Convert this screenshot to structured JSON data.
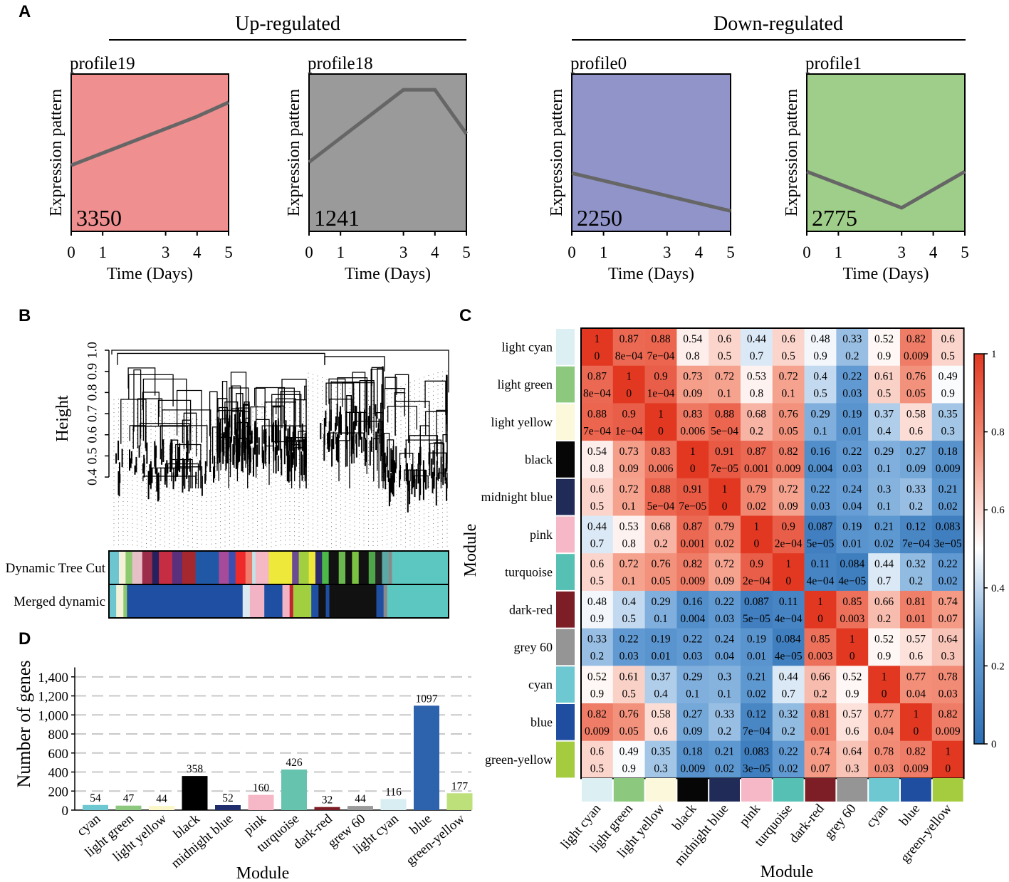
{
  "panel_labels": [
    "A",
    "B",
    "C",
    "D"
  ],
  "chart_data": [
    {
      "type": "line",
      "panel": "A",
      "group_titles": [
        "Up-regulated",
        "Down-regulated"
      ],
      "xlabel": "Time (Days)",
      "ylabel": "Expression pattern",
      "xticks": [
        0,
        1,
        3,
        4,
        5
      ],
      "xlim": [
        0,
        5
      ],
      "profiles": [
        {
          "name": "profile19",
          "count": "3350",
          "color": "#ef8f8f",
          "x": [
            0,
            4,
            5
          ],
          "y": [
            0.42,
            0.73,
            0.82
          ]
        },
        {
          "name": "profile18",
          "count": "1241",
          "color": "#9a9a9a",
          "x": [
            0,
            3,
            4,
            5
          ],
          "y": [
            0.44,
            0.9,
            0.9,
            0.62
          ]
        },
        {
          "name": "profile0",
          "count": "2250",
          "color": "#9094c8",
          "x": [
            0,
            5
          ],
          "y": [
            0.37,
            0.13
          ]
        },
        {
          "name": "profile1",
          "count": "2775",
          "color": "#9fce8a",
          "x": [
            0,
            3,
            5
          ],
          "y": [
            0.38,
            0.15,
            0.38
          ]
        }
      ]
    },
    {
      "type": "dendrogram",
      "panel": "B",
      "ylabel": "Height",
      "yticks": [
        "1.0",
        "0.9",
        "0.8",
        "0.7",
        "0.6",
        "0.5",
        "0.4"
      ],
      "ylim": [
        0.36,
        1.0
      ],
      "color_rows": [
        {
          "label": "Dynamic Tree Cut",
          "segments": [
            {
              "c": "#6cc5cf",
              "w": 3
            },
            {
              "c": "#f5f0d8",
              "w": 2
            },
            {
              "c": "#8cc96f",
              "w": 2
            },
            {
              "c": "#e7c0c7",
              "w": 3
            },
            {
              "c": "#9b2c4a",
              "w": 3
            },
            {
              "c": "#27205e",
              "w": 2
            },
            {
              "c": "#c62d43",
              "w": 4
            },
            {
              "c": "#5a2f7c",
              "w": 3
            },
            {
              "c": "#a5282f",
              "w": 4
            },
            {
              "c": "#2058a6",
              "w": 7
            },
            {
              "c": "#a64a9a",
              "w": 3
            },
            {
              "c": "#3a4fb0",
              "w": 2
            },
            {
              "c": "#ee2a2a",
              "w": 3
            },
            {
              "c": "#f07c6e",
              "w": 2
            },
            {
              "c": "#bfe4e9",
              "w": 1
            },
            {
              "c": "#f4b9c5",
              "w": 4
            },
            {
              "c": "#ede83a",
              "w": 7
            },
            {
              "c": "#6d4a94",
              "w": 2
            },
            {
              "c": "#a2cf3f",
              "w": 3
            },
            {
              "c": "#ede83a",
              "w": 2
            },
            {
              "c": "#2e2a6b",
              "w": 2
            },
            {
              "c": "#4cb848",
              "w": 2
            },
            {
              "c": "#111111",
              "w": 3
            },
            {
              "c": "#6ab64f",
              "w": 2
            },
            {
              "c": "#111111",
              "w": 2
            },
            {
              "c": "#7cc242",
              "w": 2
            },
            {
              "c": "#111111",
              "w": 3
            },
            {
              "c": "#4ea54a",
              "w": 2
            },
            {
              "c": "#222222",
              "w": 2
            },
            {
              "c": "#5aa9a6",
              "w": 2
            },
            {
              "c": "#8a8a8a",
              "w": 1
            },
            {
              "c": "#5cc7c0",
              "w": 17
            }
          ]
        },
        {
          "label": "Merged dynamic",
          "segments": [
            {
              "c": "#6cc5cf",
              "w": 2
            },
            {
              "c": "#f5f0d8",
              "w": 2
            },
            {
              "c": "#8cc96f",
              "w": 1
            },
            {
              "c": "#1f4fa3",
              "w": 32
            },
            {
              "c": "#dbe9f1",
              "w": 2
            },
            {
              "c": "#f2b3c4",
              "w": 4
            },
            {
              "c": "#1f4fa3",
              "w": 5
            },
            {
              "c": "#f2b3c4",
              "w": 2
            },
            {
              "c": "#c42430",
              "w": 1
            },
            {
              "c": "#a2cf3f",
              "w": 5
            },
            {
              "c": "#1f4fa3",
              "w": 2
            },
            {
              "c": "#111111",
              "w": 2
            },
            {
              "c": "#1f4fa3",
              "w": 1
            },
            {
              "c": "#111111",
              "w": 13
            },
            {
              "c": "#1f4fa3",
              "w": 2
            },
            {
              "c": "#8a8a8a",
              "w": 1
            },
            {
              "c": "#5cc7c0",
              "w": 17
            }
          ]
        }
      ]
    },
    {
      "type": "heatmap",
      "panel": "C",
      "ylabel": "Module",
      "xlabel": "Module",
      "modules": [
        "light cyan",
        "light green",
        "light yellow",
        "black",
        "midnight blue",
        "pink",
        "turquoise",
        "dark-red",
        "grey 60",
        "cyan",
        "blue",
        "green-yellow"
      ],
      "module_colors": [
        "#dcf0f3",
        "#8cc97f",
        "#fbf8dc",
        "#060606",
        "#212b58",
        "#f6b8c7",
        "#55c0b3",
        "#7d1d25",
        "#959595",
        "#6ec8d2",
        "#1f4da0",
        "#a5cc3f"
      ],
      "colorbar_ticks": [
        "1",
        "0.8",
        "0.6",
        "0.4",
        "0.2",
        "0"
      ],
      "colorbar_range": [
        0,
        1
      ],
      "correlation": [
        [
          1,
          0.87,
          0.88,
          0.54,
          0.6,
          0.44,
          0.6,
          0.48,
          0.33,
          0.52,
          0.82,
          0.6
        ],
        [
          0.87,
          1,
          0.9,
          0.73,
          0.72,
          0.53,
          0.72,
          0.4,
          0.22,
          0.61,
          0.76,
          0.49
        ],
        [
          0.88,
          0.9,
          1,
          0.83,
          0.88,
          0.68,
          0.76,
          0.29,
          0.19,
          0.37,
          0.58,
          0.35
        ],
        [
          0.54,
          0.73,
          0.83,
          1,
          0.91,
          0.87,
          0.82,
          0.16,
          0.22,
          0.29,
          0.27,
          0.18
        ],
        [
          0.6,
          0.72,
          0.88,
          0.91,
          1,
          0.79,
          0.72,
          0.22,
          0.24,
          0.3,
          0.33,
          0.21
        ],
        [
          0.44,
          0.53,
          0.68,
          0.87,
          0.79,
          1,
          0.9,
          0.087,
          0.19,
          0.21,
          0.12,
          0.083
        ],
        [
          0.6,
          0.72,
          0.76,
          0.82,
          0.72,
          0.9,
          1,
          0.11,
          0.084,
          0.44,
          0.32,
          0.22
        ],
        [
          0.48,
          0.4,
          0.29,
          0.16,
          0.22,
          0.087,
          0.11,
          1,
          0.85,
          0.66,
          0.81,
          0.74
        ],
        [
          0.33,
          0.22,
          0.19,
          0.22,
          0.24,
          0.19,
          0.084,
          0.85,
          1,
          0.52,
          0.57,
          0.64
        ],
        [
          0.52,
          0.61,
          0.37,
          0.29,
          0.3,
          0.21,
          0.44,
          0.66,
          0.52,
          1,
          0.77,
          0.78
        ],
        [
          0.82,
          0.76,
          0.58,
          0.27,
          0.33,
          0.12,
          0.32,
          0.81,
          0.57,
          0.77,
          1,
          0.82
        ],
        [
          0.6,
          0.49,
          0.35,
          0.18,
          0.21,
          0.083,
          0.22,
          0.74,
          0.64,
          0.78,
          0.82,
          1
        ]
      ],
      "corr_labels": [
        [
          "1",
          "0.87",
          "0.88",
          "0.54",
          "0.6",
          "0.44",
          "0.6",
          "0.48",
          "0.33",
          "0.52",
          "0.82",
          "0.6"
        ],
        [
          "0.87",
          "1",
          "0.9",
          "0.73",
          "0.72",
          "0.53",
          "0.72",
          "0.4",
          "0.22",
          "0.61",
          "0.76",
          "0.49"
        ],
        [
          "0.88",
          "0.9",
          "1",
          "0.83",
          "0.88",
          "0.68",
          "0.76",
          "0.29",
          "0.19",
          "0.37",
          "0.58",
          "0.35"
        ],
        [
          "0.54",
          "0.73",
          "0.83",
          "1",
          "0.91",
          "0.87",
          "0.82",
          "0.16",
          "0.22",
          "0.29",
          "0.27",
          "0.18"
        ],
        [
          "0.6",
          "0.72",
          "0.88",
          "0.91",
          "1",
          "0.79",
          "0.72",
          "0.22",
          "0.24",
          "0.3",
          "0.33",
          "0.21"
        ],
        [
          "0.44",
          "0.53",
          "0.68",
          "0.87",
          "0.79",
          "1",
          "0.9",
          "0.087",
          "0.19",
          "0.21",
          "0.12",
          "0.083"
        ],
        [
          "0.6",
          "0.72",
          "0.76",
          "0.82",
          "0.72",
          "0.9",
          "1",
          "0.11",
          "0.084",
          "0.44",
          "0.32",
          "0.22"
        ],
        [
          "0.48",
          "0.4",
          "0.29",
          "0.16",
          "0.22",
          "0.087",
          "0.11",
          "1",
          "0.85",
          "0.66",
          "0.81",
          "0.74"
        ],
        [
          "0.33",
          "0.22",
          "0.19",
          "0.22",
          "0.24",
          "0.19",
          "0.084",
          "0.85",
          "1",
          "0.52",
          "0.57",
          "0.64"
        ],
        [
          "0.52",
          "0.61",
          "0.37",
          "0.29",
          "0.3",
          "0.21",
          "0.44",
          "0.66",
          "0.52",
          "1",
          "0.77",
          "0.78"
        ],
        [
          "0.82",
          "0.76",
          "0.58",
          "0.27",
          "0.33",
          "0.12",
          "0.32",
          "0.81",
          "0.57",
          "0.77",
          "1",
          "0.82"
        ],
        [
          "0.6",
          "0.49",
          "0.35",
          "0.18",
          "0.21",
          "0.083",
          "0.22",
          "0.74",
          "0.64",
          "0.78",
          "0.82",
          "1"
        ]
      ],
      "pvalues": [
        [
          "0",
          "8e−04",
          "7e−04",
          "0.8",
          "0.5",
          "0.7",
          "0.5",
          "0.9",
          "0.2",
          "0.9",
          "0.009",
          "0.5"
        ],
        [
          "8e−04",
          "0",
          "1e−04",
          "0.09",
          "0.1",
          "0.8",
          "0.1",
          "0.5",
          "0.03",
          "0.5",
          "0.05",
          "0.9"
        ],
        [
          "7e−04",
          "1e−04",
          "0",
          "0.006",
          "5e−04",
          "0.2",
          "0.05",
          "0.1",
          "0.01",
          "0.4",
          "0.6",
          "0.3"
        ],
        [
          "0.8",
          "0.09",
          "0.006",
          "0",
          "7e−05",
          "0.001",
          "0.009",
          "0.004",
          "0.03",
          "0.1",
          "0.09",
          "0.009"
        ],
        [
          "0.5",
          "0.1",
          "5e−04",
          "7e−05",
          "0",
          "0.02",
          "0.09",
          "0.03",
          "0.04",
          "0.1",
          "0.2",
          "0.02"
        ],
        [
          "0.7",
          "0.8",
          "0.2",
          "0.001",
          "0.02",
          "0",
          "2e−04",
          "5e−05",
          "0.01",
          "0.02",
          "7e−04",
          "3e−05"
        ],
        [
          "0.5",
          "0.1",
          "0.05",
          "0.009",
          "0.09",
          "2e−04",
          "0",
          "4e−04",
          "4e−05",
          "0.7",
          "0.2",
          "0.02"
        ],
        [
          "0.9",
          "0.5",
          "0.1",
          "0.004",
          "0.03",
          "5e−05",
          "4e−04",
          "0",
          "0.003",
          "0.2",
          "0.01",
          "0.07"
        ],
        [
          "0.2",
          "0.03",
          "0.01",
          "0.03",
          "0.04",
          "0.01",
          "4e−05",
          "0.003",
          "0",
          "0.9",
          "0.6",
          "0.3"
        ],
        [
          "0.9",
          "0.5",
          "0.4",
          "0.1",
          "0.1",
          "0.02",
          "0.7",
          "0.2",
          "0.9",
          "0",
          "0.04",
          "0.03"
        ],
        [
          "0.009",
          "0.05",
          "0.6",
          "0.09",
          "0.2",
          "7e−04",
          "0.2",
          "0.01",
          "0.6",
          "0.04",
          "0",
          "0.009"
        ],
        [
          "0.5",
          "0.9",
          "0.3",
          "0.009",
          "0.02",
          "3e−05",
          "0.02",
          "0.07",
          "0.3",
          "0.03",
          "0.009",
          "0"
        ]
      ]
    },
    {
      "type": "bar",
      "panel": "D",
      "xlabel": "Module",
      "ylabel": "Number of genes",
      "ylim": [
        0,
        1500
      ],
      "yticks": [
        "0",
        "200",
        "400",
        "600",
        "800",
        "1,000",
        "1,200",
        "1,400"
      ],
      "grid": "dashed",
      "categories": [
        "cyan",
        "light green",
        "light yellow",
        "black",
        "midnight blue",
        "pink",
        "turquoise",
        "dark-red",
        "grew 60",
        "light cyan",
        "blue",
        "green-yellow"
      ],
      "values": [
        54,
        47,
        44,
        358,
        52,
        160,
        426,
        32,
        44,
        116,
        1097,
        177
      ],
      "value_labels": [
        "54",
        "47",
        "44",
        "358",
        "52",
        "160",
        "426",
        "32",
        "44",
        "116",
        "1097",
        "177"
      ],
      "colors": [
        "#6ec8d2",
        "#8cc97f",
        "#fbf7c9",
        "#000000",
        "#1f2d6e",
        "#f6b8c7",
        "#66c3ae",
        "#7d1d25",
        "#9a9a9a",
        "#d9eef2",
        "#2d62ad",
        "#bde07b"
      ]
    }
  ]
}
